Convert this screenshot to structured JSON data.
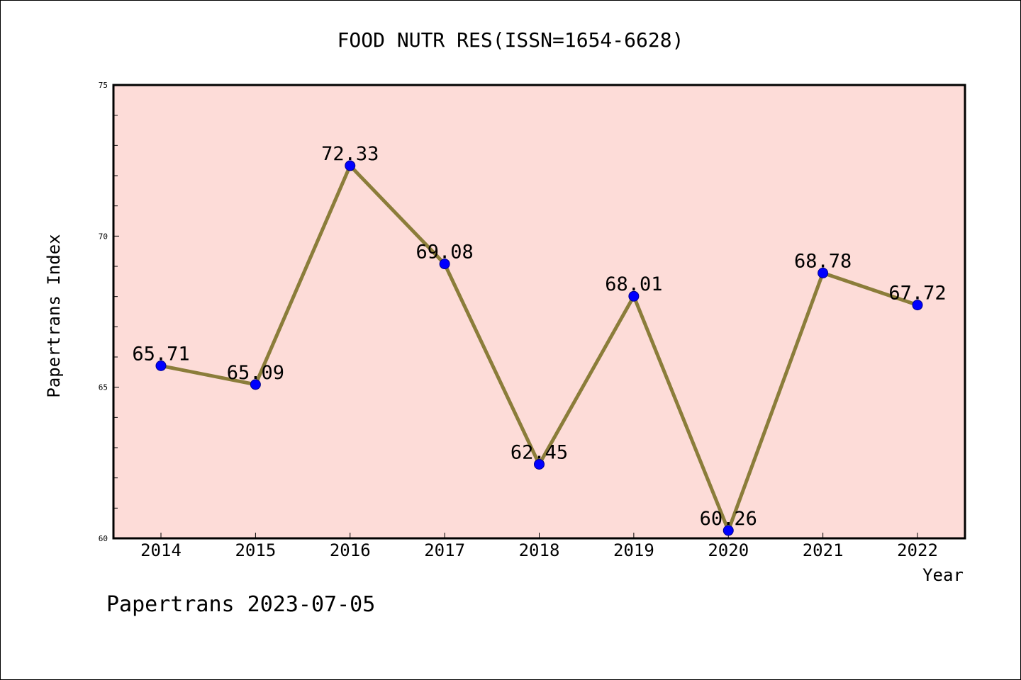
{
  "chart_data": {
    "type": "line",
    "title": "FOOD NUTR RES(ISSN=1654-6628)",
    "xlabel": "Year",
    "ylabel": "Papertrans Index",
    "categories": [
      "2014",
      "2015",
      "2016",
      "2017",
      "2018",
      "2019",
      "2020",
      "2021",
      "2022"
    ],
    "series": [
      {
        "values": [
          65.71,
          65.09,
          72.33,
          69.08,
          62.45,
          68.01,
          60.26,
          68.78,
          67.72
        ]
      }
    ],
    "data_labels": [
      "65.71",
      "65.09",
      "72.33",
      "69.08",
      "62.45",
      "68.01",
      "60.26",
      "68.78",
      "67.72"
    ],
    "ylim": [
      60,
      75
    ],
    "yticks": [
      "60",
      "65",
      "70",
      "75"
    ],
    "grid": false,
    "colors": {
      "plot_background": "#fddcd8",
      "line": "#8b7d3a",
      "marker": "#0000ff"
    }
  },
  "footer": "Papertrans 2023-07-05"
}
